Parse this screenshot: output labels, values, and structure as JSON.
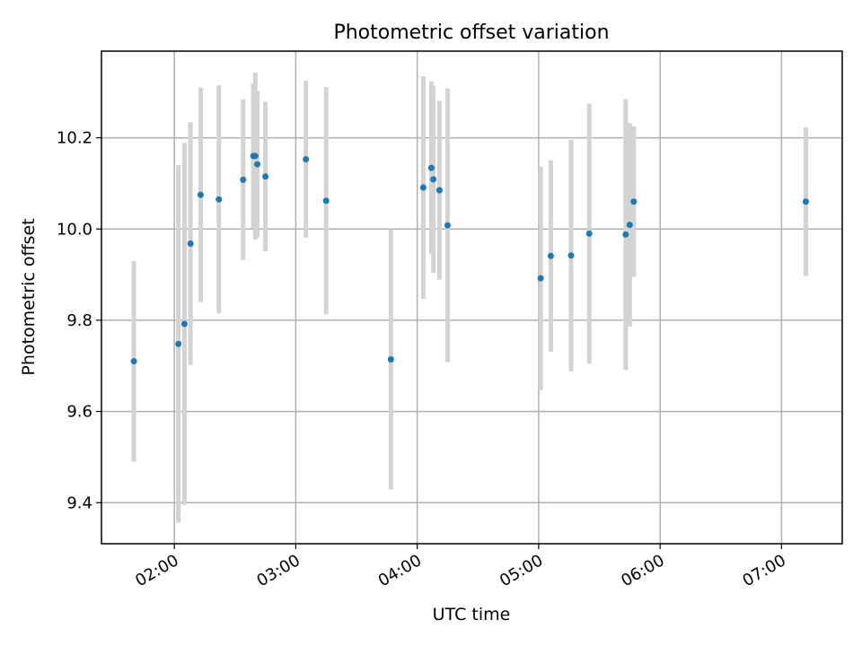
{
  "chart_data": {
    "type": "scatter",
    "title": "Photometric offset variation",
    "xlabel": "UTC time",
    "ylabel": "Photometric offset",
    "x_tick_labels": [
      "02:00",
      "03:00",
      "04:00",
      "05:00",
      "06:00",
      "07:00"
    ],
    "x_ticks": [
      "02:00",
      "03:00",
      "04:00",
      "05:00",
      "06:00",
      "07:00"
    ],
    "y_ticks": [
      9.4,
      9.6,
      9.8,
      10.0,
      10.2
    ],
    "y_tick_labels": [
      "9.4",
      "9.6",
      "9.8",
      "10.0",
      "10.2"
    ],
    "xlim": [
      "01:24",
      "07:30"
    ],
    "ylim": [
      9.31,
      10.39
    ],
    "grid": true,
    "colors": {
      "point": "#1f77b4",
      "errorbar": "#d3d3d3"
    },
    "points": [
      {
        "t": "01:40",
        "y": 9.71,
        "err": 0.22
      },
      {
        "t": "02:02",
        "y": 9.748,
        "err": 0.392
      },
      {
        "t": "02:05",
        "y": 9.792,
        "err": 0.397
      },
      {
        "t": "02:08",
        "y": 9.968,
        "err": 0.266
      },
      {
        "t": "02:13",
        "y": 10.075,
        "err": 0.235
      },
      {
        "t": "02:22",
        "y": 10.065,
        "err": 0.25
      },
      {
        "t": "02:34",
        "y": 10.108,
        "err": 0.176
      },
      {
        "t": "02:39",
        "y": 10.16,
        "err": 0.159
      },
      {
        "t": "02:40",
        "y": 10.16,
        "err": 0.183
      },
      {
        "t": "02:41",
        "y": 10.142,
        "err": 0.161
      },
      {
        "t": "02:45",
        "y": 10.115,
        "err": 0.164
      },
      {
        "t": "03:05",
        "y": 10.153,
        "err": 0.172
      },
      {
        "t": "03:15",
        "y": 10.062,
        "err": 0.249
      },
      {
        "t": "03:47",
        "y": 9.714,
        "err": 0.285
      },
      {
        "t": "04:03",
        "y": 10.091,
        "err": 0.244
      },
      {
        "t": "04:07",
        "y": 10.134,
        "err": 0.189
      },
      {
        "t": "04:08",
        "y": 10.109,
        "err": 0.205
      },
      {
        "t": "04:11",
        "y": 10.085,
        "err": 0.196
      },
      {
        "t": "04:15",
        "y": 10.008,
        "err": 0.3
      },
      {
        "t": "05:01",
        "y": 9.892,
        "err": 0.245
      },
      {
        "t": "05:06",
        "y": 9.941,
        "err": 0.21
      },
      {
        "t": "05:16",
        "y": 9.942,
        "err": 0.254
      },
      {
        "t": "05:25",
        "y": 9.99,
        "err": 0.285
      },
      {
        "t": "05:43",
        "y": 9.988,
        "err": 0.297
      },
      {
        "t": "05:45",
        "y": 10.009,
        "err": 0.223
      },
      {
        "t": "05:47",
        "y": 10.06,
        "err": 0.165
      },
      {
        "t": "07:12",
        "y": 10.06,
        "err": 0.163
      }
    ]
  }
}
